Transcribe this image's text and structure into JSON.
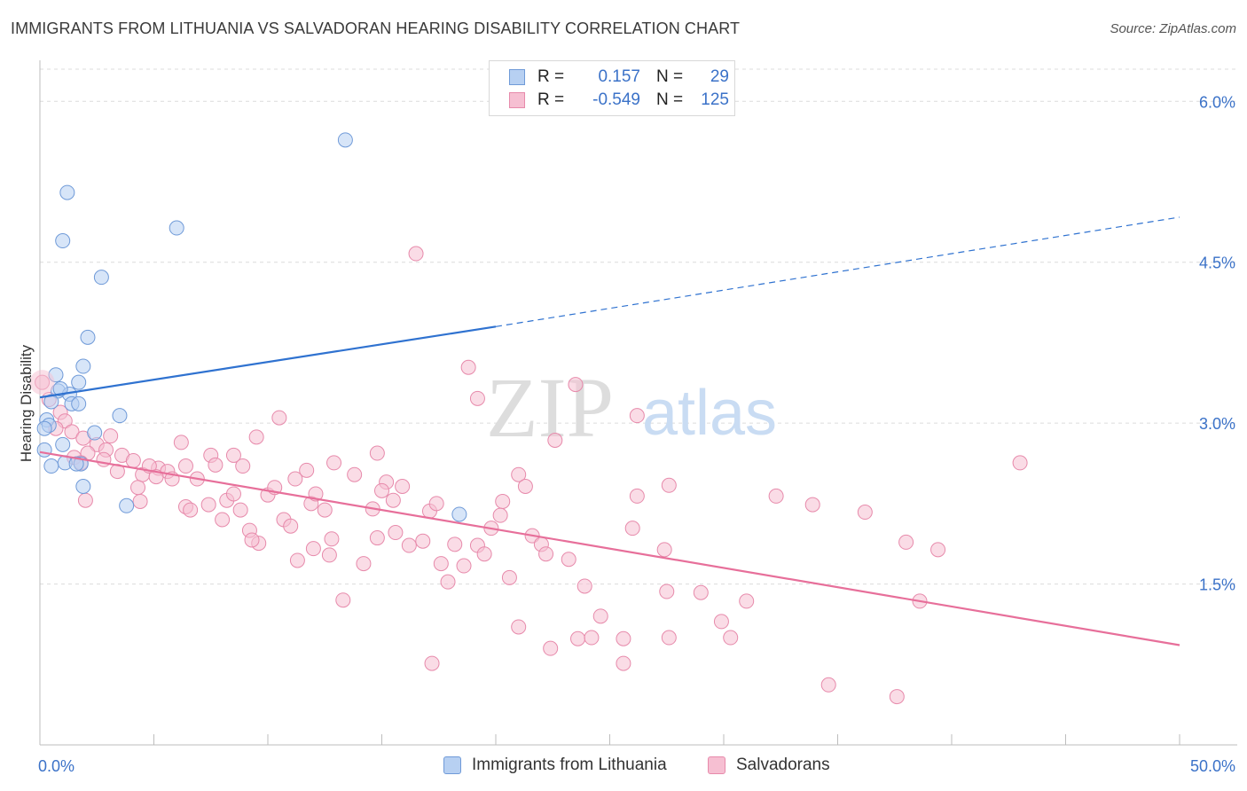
{
  "title": "IMMIGRANTS FROM LITHUANIA VS SALVADORAN HEARING DISABILITY CORRELATION CHART",
  "source": "Source: ZipAtlas.com",
  "watermark": {
    "zip": "ZIP",
    "atlas": "atlas"
  },
  "colors": {
    "blue_fill": "#b7d0f2",
    "blue_stroke": "#6f9ad8",
    "blue_line": "#2f72d0",
    "pink_fill": "#f6bfd2",
    "pink_stroke": "#e78aab",
    "pink_line": "#e76f9a",
    "value_text": "#3b72c8",
    "grid": "#dcdcdc"
  },
  "legend_top": [
    {
      "r_label": "R =",
      "r_value": " 0.157",
      "n_label": "N =",
      "n_value": "29"
    },
    {
      "r_label": "R =",
      "r_value": "-0.549",
      "n_label": "N =",
      "n_value": "125"
    }
  ],
  "legend_bottom": [
    "Immigrants from Lithuania",
    "Salvadorans"
  ],
  "chart_data": {
    "type": "scatter",
    "title": "IMMIGRANTS FROM LITHUANIA VS SALVADORAN HEARING DISABILITY CORRELATION CHART",
    "xlabel": "",
    "ylabel": "Hearing Disability",
    "xlim": [
      0,
      50
    ],
    "ylim": [
      0,
      6.3
    ],
    "x_tick_labels": [
      "0.0%",
      "50.0%"
    ],
    "y_ticks": [
      1.5,
      3.0,
      4.5,
      6.0
    ],
    "y_tick_labels": [
      "1.5%",
      "3.0%",
      "4.5%",
      "6.0%"
    ],
    "grid": true,
    "legend_position": "top-center",
    "series": [
      {
        "name": "Immigrants from Lithuania",
        "r": 0.157,
        "n": 29,
        "trend": {
          "x0": 0,
          "y0": 3.24,
          "x1": 20,
          "y1": 3.9,
          "x_dashed_end": 50,
          "y_dashed_end": 4.92
        },
        "points": [
          [
            13.4,
            5.64
          ],
          [
            1.2,
            5.15
          ],
          [
            6.0,
            4.82
          ],
          [
            1.0,
            4.7
          ],
          [
            2.7,
            4.36
          ],
          [
            2.1,
            3.8
          ],
          [
            1.9,
            3.53
          ],
          [
            0.7,
            3.45
          ],
          [
            1.7,
            3.38
          ],
          [
            0.8,
            3.3
          ],
          [
            1.3,
            3.27
          ],
          [
            0.5,
            3.2
          ],
          [
            1.4,
            3.18
          ],
          [
            1.7,
            3.18
          ],
          [
            3.5,
            3.07
          ],
          [
            0.3,
            3.03
          ],
          [
            0.4,
            2.98
          ],
          [
            2.4,
            2.91
          ],
          [
            1.0,
            2.8
          ],
          [
            0.2,
            2.75
          ],
          [
            1.1,
            2.63
          ],
          [
            1.8,
            2.62
          ],
          [
            1.6,
            2.62
          ],
          [
            0.5,
            2.6
          ],
          [
            1.9,
            2.41
          ],
          [
            3.8,
            2.23
          ],
          [
            18.4,
            2.15
          ],
          [
            0.2,
            2.95
          ],
          [
            0.9,
            3.32
          ]
        ]
      },
      {
        "name": "Salvadorans",
        "r": -0.549,
        "n": 125,
        "trend": {
          "x0": 0,
          "y0": 2.73,
          "x1": 50,
          "y1": 0.93
        },
        "points": [
          [
            0.1,
            3.38
          ],
          [
            0.4,
            3.22
          ],
          [
            0.9,
            3.1
          ],
          [
            1.1,
            3.02
          ],
          [
            1.4,
            2.92
          ],
          [
            0.7,
            2.95
          ],
          [
            1.9,
            2.86
          ],
          [
            2.5,
            2.8
          ],
          [
            3.1,
            2.88
          ],
          [
            2.1,
            2.72
          ],
          [
            1.5,
            2.68
          ],
          [
            2.9,
            2.75
          ],
          [
            3.6,
            2.7
          ],
          [
            4.1,
            2.65
          ],
          [
            2.8,
            2.66
          ],
          [
            1.8,
            2.63
          ],
          [
            3.4,
            2.55
          ],
          [
            4.5,
            2.52
          ],
          [
            5.2,
            2.58
          ],
          [
            4.8,
            2.6
          ],
          [
            5.6,
            2.55
          ],
          [
            5.1,
            2.5
          ],
          [
            5.8,
            2.48
          ],
          [
            6.4,
            2.6
          ],
          [
            6.9,
            2.48
          ],
          [
            7.5,
            2.7
          ],
          [
            7.7,
            2.61
          ],
          [
            8.5,
            2.7
          ],
          [
            8.9,
            2.6
          ],
          [
            9.5,
            2.87
          ],
          [
            10.5,
            3.05
          ],
          [
            11.7,
            2.56
          ],
          [
            12.9,
            2.63
          ],
          [
            13.8,
            2.52
          ],
          [
            14.8,
            2.72
          ],
          [
            15.2,
            2.45
          ],
          [
            15.9,
            2.41
          ],
          [
            16.5,
            4.58
          ],
          [
            18.8,
            3.52
          ],
          [
            19.2,
            3.23
          ],
          [
            23.5,
            3.36
          ],
          [
            22.6,
            2.84
          ],
          [
            26.2,
            3.07
          ],
          [
            27.6,
            2.42
          ],
          [
            21.0,
            2.52
          ],
          [
            20.3,
            2.27
          ],
          [
            4.3,
            2.4
          ],
          [
            4.4,
            2.27
          ],
          [
            6.2,
            2.82
          ],
          [
            6.4,
            2.22
          ],
          [
            6.6,
            2.19
          ],
          [
            7.4,
            2.24
          ],
          [
            8.0,
            2.1
          ],
          [
            8.2,
            2.28
          ],
          [
            8.5,
            2.34
          ],
          [
            8.8,
            2.19
          ],
          [
            9.2,
            2.0
          ],
          [
            9.6,
            1.88
          ],
          [
            10.0,
            2.33
          ],
          [
            10.3,
            2.4
          ],
          [
            10.7,
            2.1
          ],
          [
            11.0,
            2.04
          ],
          [
            11.3,
            1.72
          ],
          [
            11.9,
            2.25
          ],
          [
            12.1,
            2.34
          ],
          [
            12.5,
            2.19
          ],
          [
            12.8,
            1.92
          ],
          [
            12.7,
            1.77
          ],
          [
            13.3,
            1.35
          ],
          [
            14.2,
            1.69
          ],
          [
            14.6,
            2.2
          ],
          [
            15.0,
            2.37
          ],
          [
            15.5,
            2.28
          ],
          [
            15.6,
            1.98
          ],
          [
            16.8,
            1.9
          ],
          [
            17.1,
            2.18
          ],
          [
            17.4,
            2.25
          ],
          [
            17.6,
            1.69
          ],
          [
            17.9,
            1.52
          ],
          [
            18.2,
            1.87
          ],
          [
            18.6,
            1.67
          ],
          [
            19.2,
            1.86
          ],
          [
            19.5,
            1.78
          ],
          [
            19.8,
            2.02
          ],
          [
            20.2,
            2.14
          ],
          [
            20.6,
            1.56
          ],
          [
            21.0,
            1.1
          ],
          [
            21.6,
            1.95
          ],
          [
            22.0,
            1.87
          ],
          [
            22.2,
            1.78
          ],
          [
            22.4,
            0.9
          ],
          [
            23.2,
            1.73
          ],
          [
            23.6,
            0.99
          ],
          [
            23.9,
            1.48
          ],
          [
            24.2,
            1.0
          ],
          [
            24.6,
            1.2
          ],
          [
            25.6,
            0.99
          ],
          [
            25.6,
            0.76
          ],
          [
            26.0,
            2.02
          ],
          [
            26.2,
            2.32
          ],
          [
            27.4,
            1.82
          ],
          [
            27.5,
            1.43
          ],
          [
            27.6,
            1.0
          ],
          [
            29.0,
            1.42
          ],
          [
            29.9,
            1.15
          ],
          [
            30.3,
            1.0
          ],
          [
            31.0,
            1.34
          ],
          [
            32.3,
            2.32
          ],
          [
            33.9,
            2.24
          ],
          [
            34.6,
            0.56
          ],
          [
            36.2,
            2.17
          ],
          [
            37.6,
            0.45
          ],
          [
            38.0,
            1.89
          ],
          [
            38.6,
            1.34
          ],
          [
            39.4,
            1.82
          ],
          [
            43.0,
            2.63
          ],
          [
            12.0,
            1.83
          ],
          [
            14.8,
            1.93
          ],
          [
            16.2,
            1.86
          ],
          [
            9.3,
            1.91
          ],
          [
            17.2,
            0.76
          ],
          [
            21.3,
            2.41
          ],
          [
            2.0,
            2.28
          ],
          [
            11.2,
            2.48
          ]
        ]
      }
    ]
  }
}
